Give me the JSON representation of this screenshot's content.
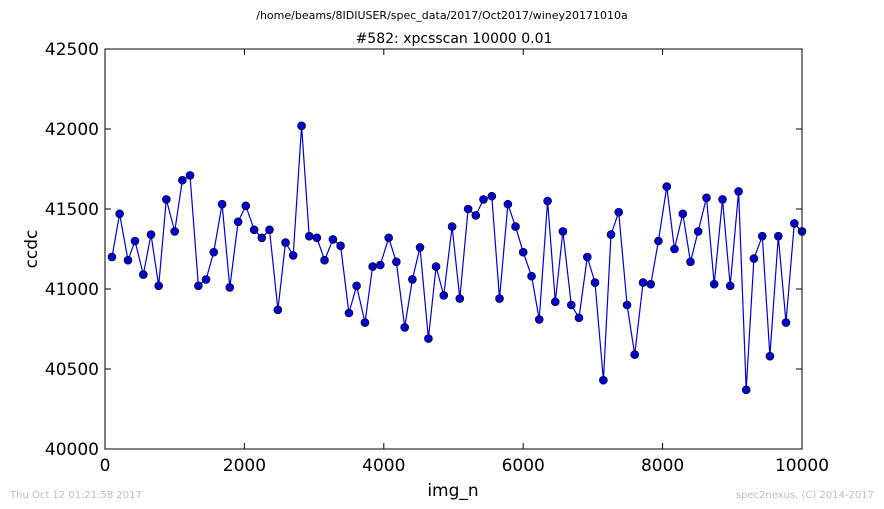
{
  "suptitle": "/home/beams/8IDIUSER/spec_data/2017/Oct2017/winey20171010a",
  "footer_left": "Thu Oct 12 01:21:58 2017",
  "footer_right": "spec2nexus, (C) 2014-2017",
  "series_color": "#0000cc",
  "chart_data": {
    "type": "line",
    "title": "#582: xpcsscan 10000 0.01",
    "xlabel": "img_n",
    "ylabel": "ccdc",
    "xlim": [
      0,
      10000
    ],
    "ylim": [
      40000,
      42500
    ],
    "xticks": [
      0,
      2000,
      4000,
      6000,
      8000,
      10000
    ],
    "yticks": [
      40000,
      40500,
      41000,
      41500,
      42000,
      42500
    ],
    "grid": false,
    "marker": "circle",
    "series": [
      {
        "x": [
          100,
          210,
          330,
          430,
          550,
          660,
          770,
          880,
          1000,
          1110,
          1220,
          1340,
          1450,
          1560,
          1680,
          1790,
          1910,
          2020,
          2140,
          2250,
          2360,
          2480,
          2590,
          2700,
          2820,
          2930,
          3040,
          3150,
          3270,
          3380,
          3500,
          3610,
          3730,
          3840,
          3950,
          4070,
          4180,
          4300,
          4410,
          4520,
          4640,
          4750,
          4860,
          4980,
          5090,
          5210,
          5320,
          5430,
          5550,
          5660,
          5780,
          5890,
          6000,
          6120,
          6230,
          6350,
          6460,
          6570,
          6690,
          6800,
          6920,
          7030,
          7150,
          7260,
          7370,
          7490,
          7600,
          7720,
          7830,
          7940,
          8060,
          8170,
          8290,
          8400,
          8510,
          8630,
          8740,
          8860,
          8970,
          9090,
          9200,
          9310,
          9430,
          9540,
          9660,
          9770,
          9890,
          10000
        ],
        "y": [
          41200,
          41470,
          41180,
          41300,
          41090,
          41340,
          41020,
          41560,
          41360,
          41680,
          41710,
          41020,
          41060,
          41230,
          41530,
          41010,
          41420,
          41520,
          41370,
          41320,
          41370,
          40870,
          41290,
          41210,
          42020,
          41330,
          41320,
          41180,
          41310,
          41270,
          40850,
          41020,
          40790,
          41140,
          41150,
          41320,
          41170,
          40760,
          41060,
          41260,
          40690,
          41140,
          40960,
          41390,
          40940,
          41500,
          41460,
          41560,
          41580,
          40940,
          41530,
          41390,
          41230,
          41080,
          40810,
          41550,
          40920,
          41360,
          40900,
          40820,
          41200,
          41040,
          40430,
          41340,
          41480,
          40900,
          40590,
          41040,
          41030,
          41300,
          41640,
          41250,
          41470,
          41170,
          41360,
          41570,
          41030,
          41560,
          41020,
          41610,
          40370,
          41190,
          41330,
          40580,
          41330,
          40790,
          41410,
          41360
        ]
      }
    ]
  }
}
